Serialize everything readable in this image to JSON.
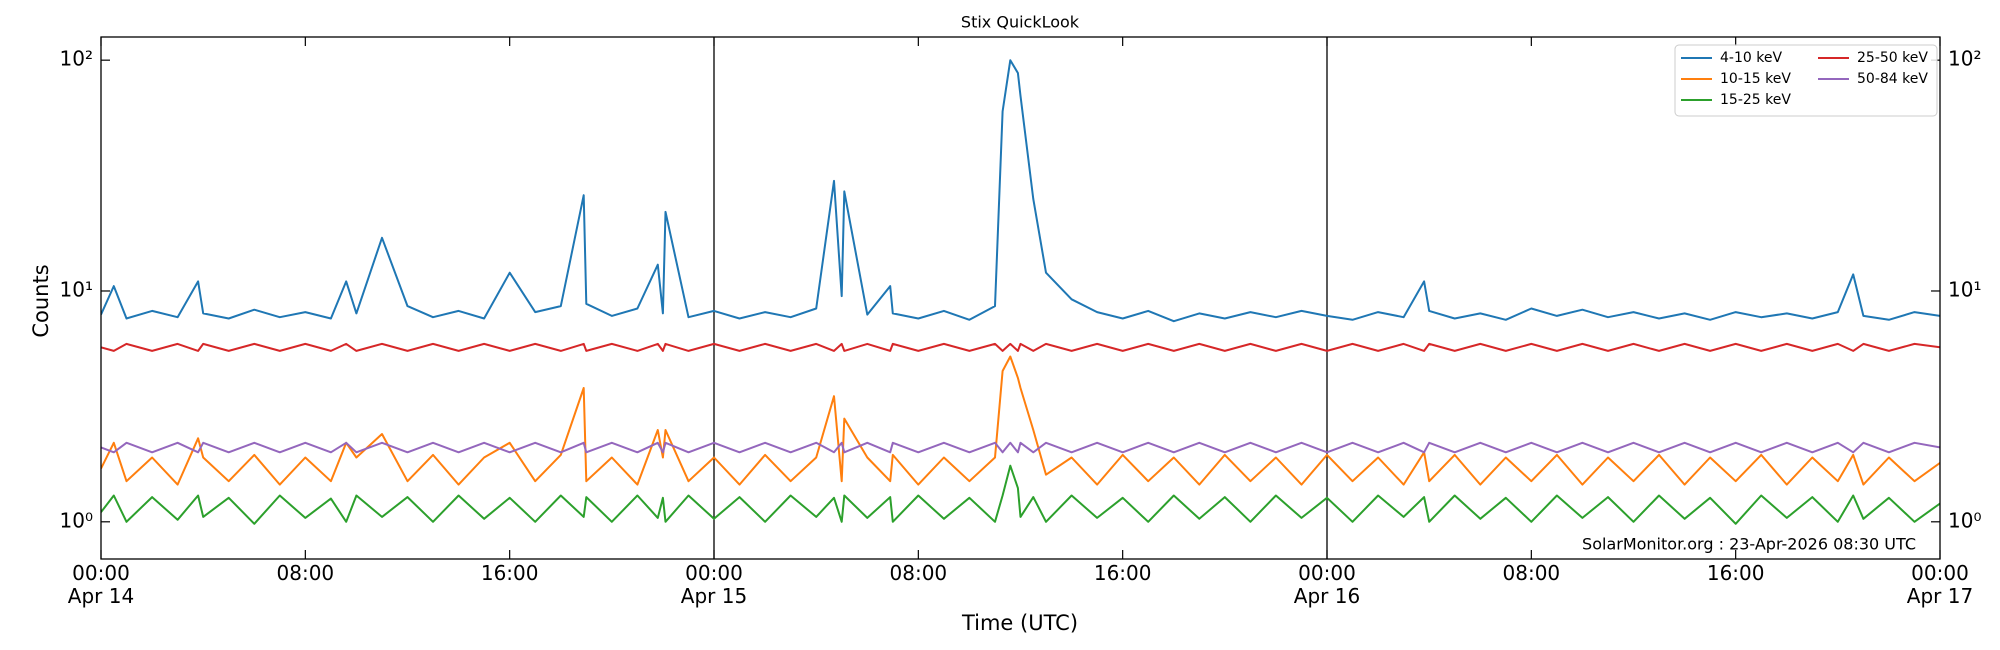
{
  "chart_data": {
    "type": "line",
    "title": "Stix QuickLook",
    "xlabel": "Time (UTC)",
    "ylabel": "Counts",
    "yscale": "log",
    "annotation": "SolarMonitor.org : 23-Apr-2026 08:30 UTC",
    "legend": "upper right",
    "xlim": [
      "Apr 14 00:00",
      "Apr 17 00:00"
    ],
    "xticks": [
      {
        "value": "Apr 14 00:00",
        "label": "00:00\nApr 14"
      },
      {
        "value": "Apr 14 08:00",
        "label": "08:00"
      },
      {
        "value": "Apr 14 16:00",
        "label": "16:00"
      },
      {
        "value": "Apr 15 00:00",
        "label": "00:00\nApr 15"
      },
      {
        "value": "Apr 15 08:00",
        "label": "08:00"
      },
      {
        "value": "Apr 15 16:00",
        "label": "16:00"
      },
      {
        "value": "Apr 16 00:00",
        "label": "00:00\nApr 16"
      },
      {
        "value": "Apr 16 08:00",
        "label": "08:00"
      },
      {
        "value": "Apr 16 16:00",
        "label": "16:00"
      },
      {
        "value": "Apr 17 00:00",
        "label": "00:00\nApr 17"
      }
    ],
    "ylim": [
      0.69,
      126
    ],
    "yticks": [
      {
        "value": 1,
        "label": "10⁰"
      },
      {
        "value": 10,
        "label": "10¹"
      },
      {
        "value": 100,
        "label": "10²"
      }
    ],
    "day_lines": [
      "Apr 15 00:00",
      "Apr 16 00:00"
    ],
    "x": [
      "Apr 14 00:00",
      "Apr 14 00:30",
      "Apr 14 01:00",
      "Apr 14 02:00",
      "Apr 14 03:00",
      "Apr 14 03:48",
      "Apr 14 04:00",
      "Apr 14 05:00",
      "Apr 14 06:00",
      "Apr 14 07:00",
      "Apr 14 08:00",
      "Apr 14 09:00",
      "Apr 14 09:36",
      "Apr 14 10:00",
      "Apr 14 11:00",
      "Apr 14 12:00",
      "Apr 14 13:00",
      "Apr 14 14:00",
      "Apr 14 15:00",
      "Apr 14 16:00",
      "Apr 14 17:00",
      "Apr 14 18:00",
      "Apr 14 18:54",
      "Apr 14 19:00",
      "Apr 14 20:00",
      "Apr 14 21:00",
      "Apr 14 21:48",
      "Apr 14 22:00",
      "Apr 14 22:06",
      "Apr 14 23:00",
      "Apr 15 00:00",
      "Apr 15 01:00",
      "Apr 15 02:00",
      "Apr 15 03:00",
      "Apr 15 04:00",
      "Apr 15 04:42",
      "Apr 15 05:00",
      "Apr 15 05:06",
      "Apr 15 06:00",
      "Apr 15 06:54",
      "Apr 15 07:00",
      "Apr 15 08:00",
      "Apr 15 09:00",
      "Apr 15 10:00",
      "Apr 15 11:00",
      "Apr 15 11:18",
      "Apr 15 11:36",
      "Apr 15 11:54",
      "Apr 15 12:00",
      "Apr 15 12:30",
      "Apr 15 13:00",
      "Apr 15 14:00",
      "Apr 15 15:00",
      "Apr 15 16:00",
      "Apr 15 17:00",
      "Apr 15 18:00",
      "Apr 15 19:00",
      "Apr 15 20:00",
      "Apr 15 21:00",
      "Apr 15 22:00",
      "Apr 15 23:00",
      "Apr 16 00:00",
      "Apr 16 01:00",
      "Apr 16 02:00",
      "Apr 16 03:00",
      "Apr 16 03:48",
      "Apr 16 04:00",
      "Apr 16 05:00",
      "Apr 16 06:00",
      "Apr 16 07:00",
      "Apr 16 08:00",
      "Apr 16 09:00",
      "Apr 16 10:00",
      "Apr 16 11:00",
      "Apr 16 12:00",
      "Apr 16 13:00",
      "Apr 16 14:00",
      "Apr 16 15:00",
      "Apr 16 16:00",
      "Apr 16 17:00",
      "Apr 16 18:00",
      "Apr 16 19:00",
      "Apr 16 20:00",
      "Apr 16 20:36",
      "Apr 16 21:00",
      "Apr 16 22:00",
      "Apr 16 23:00",
      "Apr 17 00:00"
    ],
    "series": [
      {
        "name": "4-10 keV",
        "color": "#1f77b4",
        "values": [
          7.9,
          10.5,
          7.6,
          8.2,
          7.7,
          11,
          8.0,
          7.6,
          8.3,
          7.7,
          8.1,
          7.6,
          11,
          8.0,
          17,
          8.6,
          7.7,
          8.2,
          7.6,
          12,
          8.1,
          8.6,
          26,
          8.8,
          7.8,
          8.4,
          13,
          8.0,
          22,
          7.7,
          8.2,
          7.6,
          8.1,
          7.7,
          8.4,
          30,
          9.5,
          27,
          7.9,
          10.5,
          8.0,
          7.6,
          8.2,
          7.5,
          8.6,
          60,
          100,
          88,
          70,
          25,
          12,
          9.2,
          8.1,
          7.6,
          8.2,
          7.4,
          8.0,
          7.6,
          8.1,
          7.7,
          8.2,
          7.8,
          7.5,
          8.1,
          7.7,
          11,
          8.2,
          7.6,
          8.0,
          7.5,
          8.4,
          7.8,
          8.3,
          7.7,
          8.1,
          7.6,
          8.0,
          7.5,
          8.1,
          7.7,
          8.0,
          7.6,
          8.1,
          11.8,
          7.8,
          7.5,
          8.1,
          7.8
        ]
      },
      {
        "name": "10-15 keV",
        "color": "#ff7f0e",
        "values": [
          1.7,
          2.2,
          1.5,
          1.9,
          1.45,
          2.3,
          1.9,
          1.5,
          1.95,
          1.45,
          1.9,
          1.5,
          2.2,
          1.9,
          2.4,
          1.5,
          1.95,
          1.45,
          1.9,
          2.2,
          1.5,
          1.95,
          3.8,
          1.5,
          1.9,
          1.45,
          2.5,
          1.9,
          2.5,
          1.5,
          1.9,
          1.45,
          1.95,
          1.5,
          1.9,
          3.5,
          1.5,
          2.8,
          1.9,
          1.5,
          1.95,
          1.45,
          1.9,
          1.5,
          1.9,
          4.5,
          5.2,
          4.2,
          3.8,
          2.5,
          1.6,
          1.9,
          1.45,
          1.95,
          1.5,
          1.9,
          1.45,
          1.95,
          1.5,
          1.9,
          1.45,
          1.95,
          1.5,
          1.9,
          1.45,
          2.0,
          1.5,
          1.95,
          1.45,
          1.9,
          1.5,
          1.95,
          1.45,
          1.9,
          1.5,
          1.95,
          1.45,
          1.9,
          1.5,
          1.95,
          1.45,
          1.9,
          1.5,
          1.95,
          1.45,
          1.9,
          1.5,
          1.8
        ]
      },
      {
        "name": "15-25 keV",
        "color": "#2ca02c",
        "values": [
          1.1,
          1.3,
          1.0,
          1.28,
          1.02,
          1.3,
          1.05,
          1.27,
          0.98,
          1.3,
          1.04,
          1.26,
          1.0,
          1.3,
          1.05,
          1.28,
          1.0,
          1.3,
          1.03,
          1.27,
          1.0,
          1.3,
          1.05,
          1.28,
          1.0,
          1.3,
          1.04,
          1.27,
          1.0,
          1.3,
          1.03,
          1.28,
          1.0,
          1.3,
          1.05,
          1.27,
          1.0,
          1.3,
          1.04,
          1.28,
          1.0,
          1.3,
          1.03,
          1.27,
          1.0,
          1.3,
          1.75,
          1.4,
          1.05,
          1.28,
          1.0,
          1.3,
          1.04,
          1.27,
          1.0,
          1.3,
          1.03,
          1.28,
          1.0,
          1.3,
          1.04,
          1.27,
          1.0,
          1.3,
          1.05,
          1.28,
          1.0,
          1.3,
          1.03,
          1.27,
          1.0,
          1.3,
          1.04,
          1.28,
          1.0,
          1.3,
          1.03,
          1.27,
          0.98,
          1.3,
          1.04,
          1.28,
          1.0,
          1.3,
          1.03,
          1.27,
          1.0,
          1.2
        ]
      },
      {
        "name": "25-50 keV",
        "color": "#d62728",
        "values": [
          5.7,
          5.5,
          5.9,
          5.5,
          5.9,
          5.5,
          5.9,
          5.5,
          5.9,
          5.5,
          5.9,
          5.5,
          5.9,
          5.5,
          5.9,
          5.5,
          5.9,
          5.5,
          5.9,
          5.5,
          5.9,
          5.5,
          5.9,
          5.5,
          5.9,
          5.5,
          5.9,
          5.5,
          5.9,
          5.5,
          5.9,
          5.5,
          5.9,
          5.5,
          5.9,
          5.5,
          5.9,
          5.5,
          5.9,
          5.5,
          5.9,
          5.5,
          5.9,
          5.5,
          5.9,
          5.5,
          5.9,
          5.5,
          5.9,
          5.5,
          5.9,
          5.5,
          5.9,
          5.5,
          5.9,
          5.5,
          5.9,
          5.5,
          5.9,
          5.5,
          5.9,
          5.5,
          5.9,
          5.5,
          5.9,
          5.5,
          5.9,
          5.5,
          5.9,
          5.5,
          5.9,
          5.5,
          5.9,
          5.5,
          5.9,
          5.5,
          5.9,
          5.5,
          5.9,
          5.5,
          5.9,
          5.5,
          5.9,
          5.5,
          5.9,
          5.5,
          5.9,
          5.7
        ]
      },
      {
        "name": "50-84 keV",
        "color": "#9467bd",
        "values": [
          2.1,
          2.0,
          2.2,
          2.0,
          2.2,
          2.0,
          2.2,
          2.0,
          2.2,
          2.0,
          2.2,
          2.0,
          2.2,
          2.0,
          2.2,
          2.0,
          2.2,
          2.0,
          2.2,
          2.0,
          2.2,
          2.0,
          2.2,
          2.0,
          2.2,
          2.0,
          2.2,
          2.0,
          2.2,
          2.0,
          2.2,
          2.0,
          2.2,
          2.0,
          2.2,
          2.0,
          2.2,
          2.0,
          2.2,
          2.0,
          2.2,
          2.0,
          2.2,
          2.0,
          2.2,
          2.0,
          2.2,
          2.0,
          2.2,
          2.0,
          2.2,
          2.0,
          2.2,
          2.0,
          2.2,
          2.0,
          2.2,
          2.0,
          2.2,
          2.0,
          2.2,
          2.0,
          2.2,
          2.0,
          2.2,
          2.0,
          2.2,
          2.0,
          2.2,
          2.0,
          2.2,
          2.0,
          2.2,
          2.0,
          2.2,
          2.0,
          2.2,
          2.0,
          2.2,
          2.0,
          2.2,
          2.0,
          2.2,
          2.0,
          2.2,
          2.0,
          2.2,
          2.1
        ]
      }
    ]
  }
}
